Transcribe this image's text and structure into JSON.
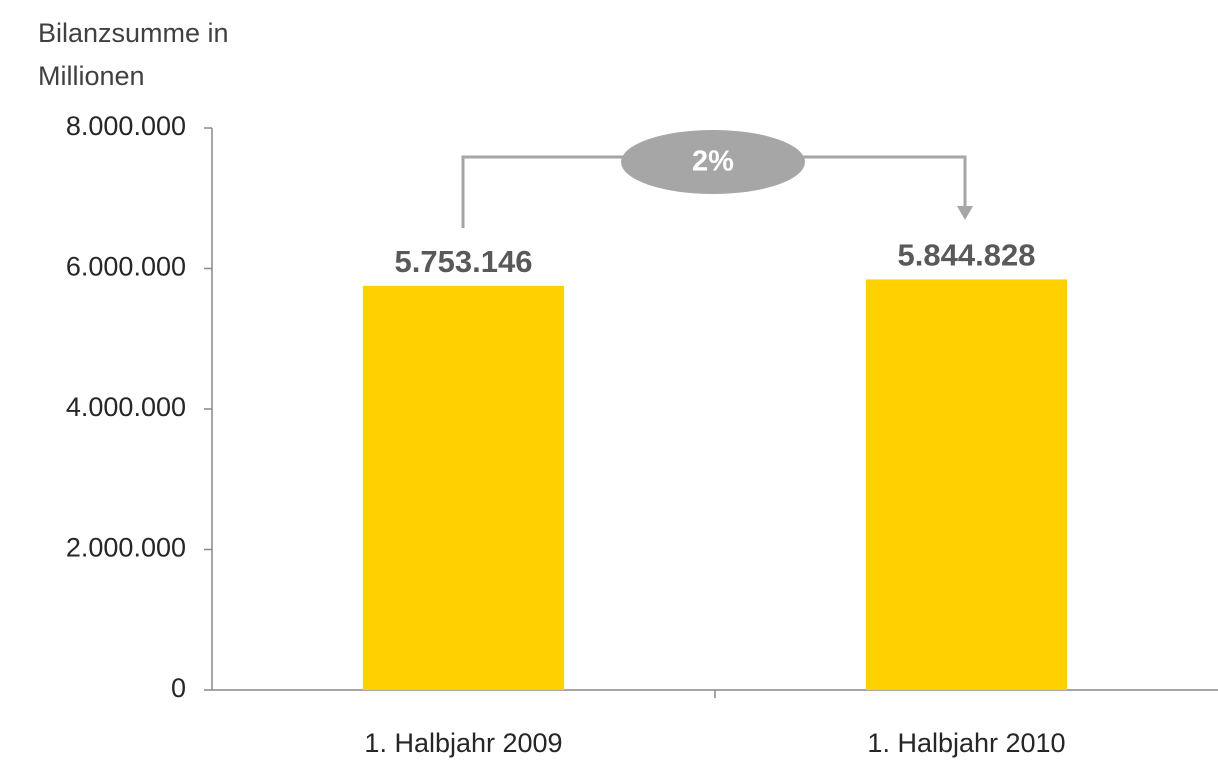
{
  "chart_data": {
    "type": "bar",
    "ylabel": "Bilanzsumme in Millionen",
    "categories": [
      "1. Halbjahr 2009",
      "1. Halbjahr 2010"
    ],
    "values": [
      5753146,
      5844828
    ],
    "value_labels": [
      "5.753.146",
      "5.844.828"
    ],
    "color": "#ffd100",
    "ylim": [
      0,
      8000000
    ],
    "yticks": [
      0,
      {
        "value": 2000000,
        "label": "2.000.000"
      },
      {
        "value": 4000000,
        "label": "4.000.000"
      },
      {
        "value": 6000000,
        "label": "6.000.000"
      },
      {
        "value": 8000000,
        "label": "8.000.000"
      }
    ],
    "annotation": "2%"
  }
}
